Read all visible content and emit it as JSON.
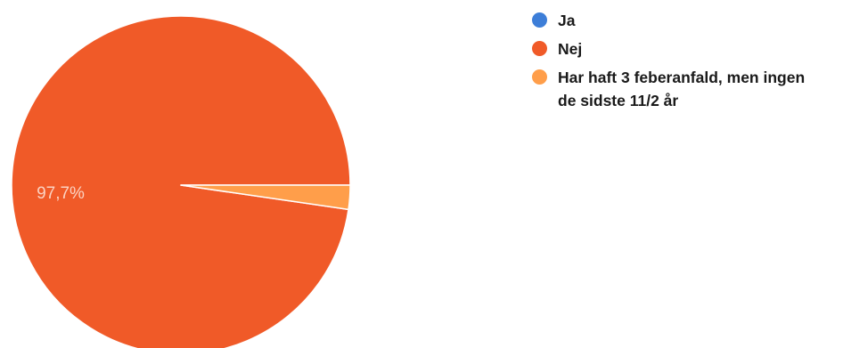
{
  "colors": {
    "ja": "#3d7ed8",
    "nej": "#f05a28",
    "other": "#ff9e4a",
    "slice_label": "#fbd2c2"
  },
  "chart_data": {
    "type": "pie",
    "series": [
      {
        "name": "Ja",
        "value": 0.0,
        "color": "#3d7ed8"
      },
      {
        "name": "Nej",
        "value": 97.7,
        "color": "#f05a28"
      },
      {
        "name": "Har haft 3 feberanfald, men ingen de sidste 11/2 år",
        "value": 2.3,
        "color": "#ff9e4a"
      }
    ],
    "slice_labels": [
      "97,7%"
    ],
    "legend_position": "right"
  }
}
